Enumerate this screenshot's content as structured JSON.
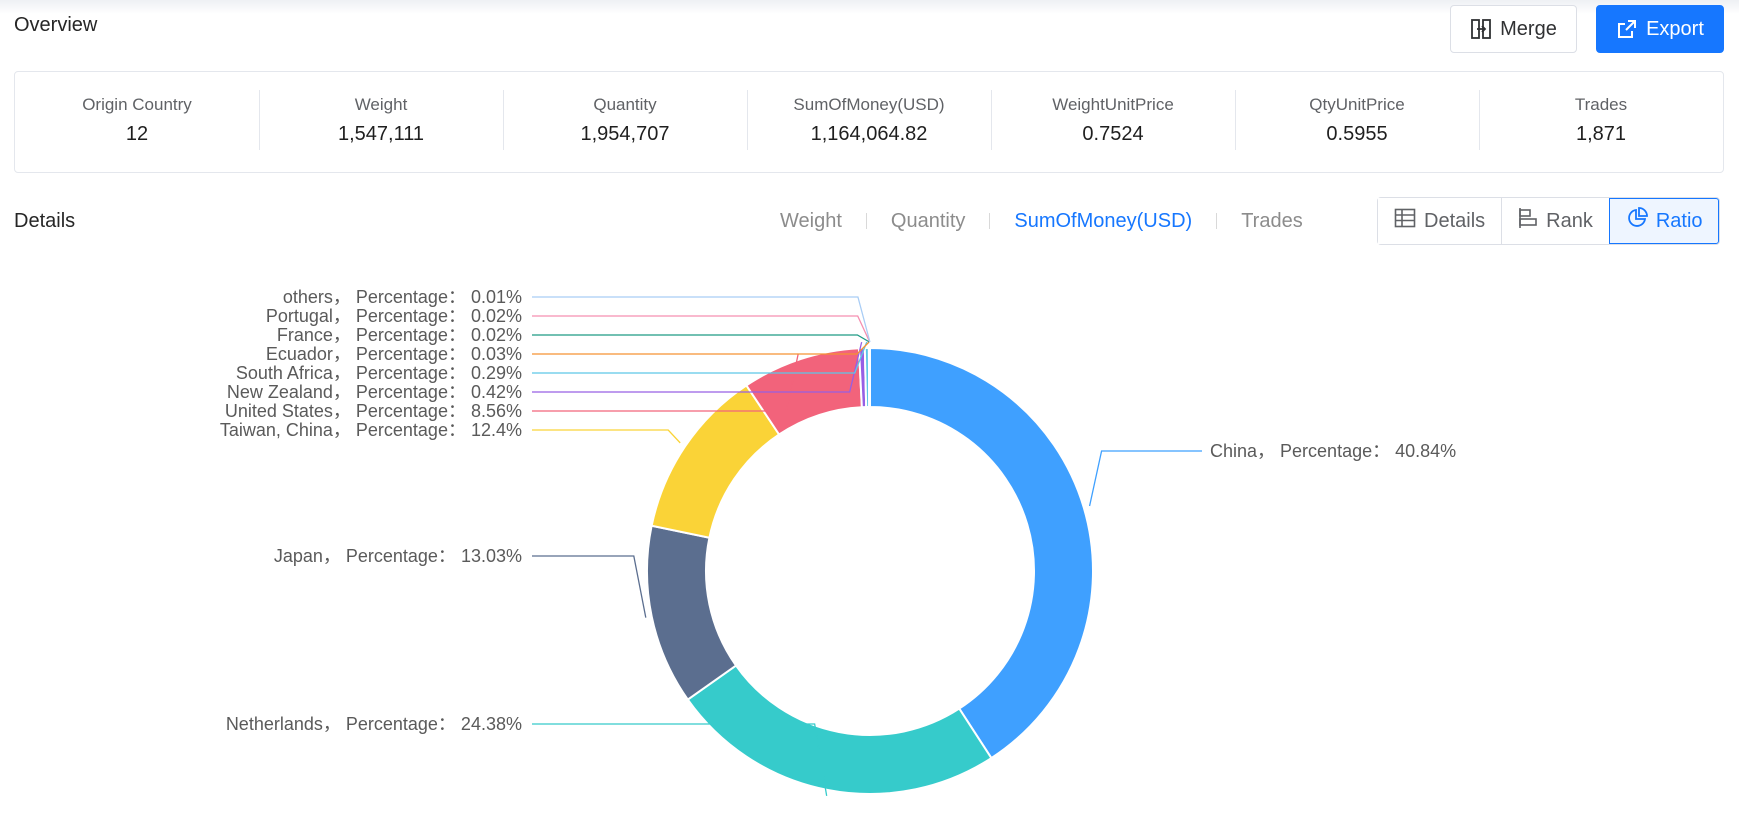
{
  "overview": {
    "title": "Overview"
  },
  "toolbar": {
    "merge_label": "Merge",
    "export_label": "Export"
  },
  "stats": [
    {
      "label": "Origin Country",
      "value": "12"
    },
    {
      "label": "Weight",
      "value": "1,547,111"
    },
    {
      "label": "Quantity",
      "value": "1,954,707"
    },
    {
      "label": "SumOfMoney(USD)",
      "value": "1,164,064.82"
    },
    {
      "label": "WeightUnitPrice",
      "value": "0.7524"
    },
    {
      "label": "QtyUnitPrice",
      "value": "0.5955"
    },
    {
      "label": "Trades",
      "value": "1,871"
    }
  ],
  "details": {
    "title": "Details",
    "metric_tabs": [
      "Weight",
      "Quantity",
      "SumOfMoney(USD)",
      "Trades"
    ],
    "active_metric": "SumOfMoney(USD)",
    "view_buttons": [
      "Details",
      "Rank",
      "Ratio"
    ],
    "active_view": "Ratio"
  },
  "chart_data": {
    "type": "pie",
    "variant": "donut",
    "label_template": "{name}， Percentage： {value}%",
    "series": [
      {
        "name": "China",
        "value": 40.84,
        "color": "#3fa0ff"
      },
      {
        "name": "Netherlands",
        "value": 24.38,
        "color": "#36cbcb"
      },
      {
        "name": "Japan",
        "value": 13.03,
        "color": "#5b6e8f"
      },
      {
        "name": "Taiwan, China",
        "value": 12.4,
        "color": "#fad337"
      },
      {
        "name": "United States",
        "value": 8.56,
        "color": "#f2637b"
      },
      {
        "name": "New Zealand",
        "value": 0.42,
        "color": "#975fe4"
      },
      {
        "name": "South Africa",
        "value": 0.29,
        "color": "#5cc6e8"
      },
      {
        "name": "Ecuador",
        "value": 0.03,
        "color": "#f59233"
      },
      {
        "name": "France",
        "value": 0.02,
        "color": "#1d9a85"
      },
      {
        "name": "Portugal",
        "value": 0.02,
        "color": "#f58fb0"
      },
      {
        "name": "others",
        "value": 0.01,
        "color": "#a9cdf5"
      }
    ]
  }
}
